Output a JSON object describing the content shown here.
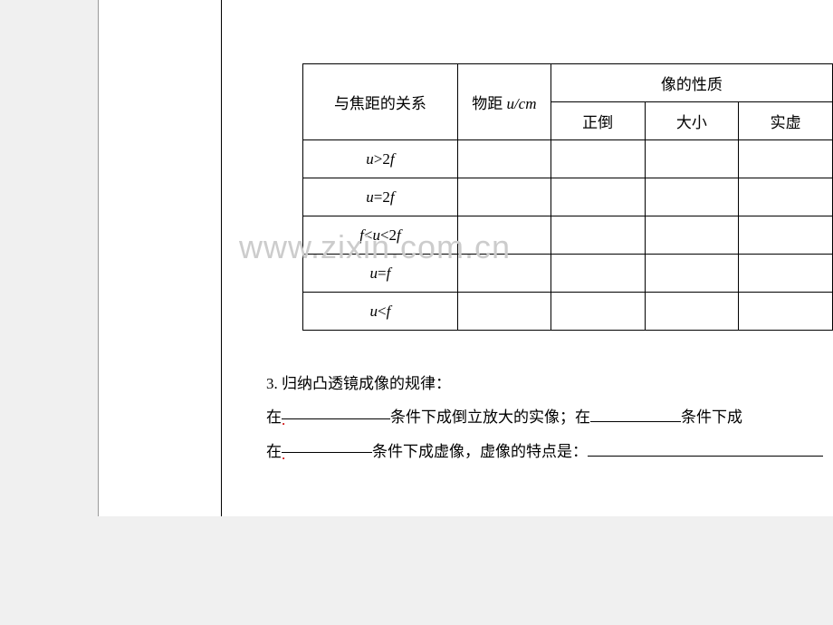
{
  "table": {
    "headers": {
      "relation": "与焦距的关系",
      "distance_label": "物距",
      "distance_unit": "u/cm",
      "properties": "像的性质",
      "sub_headers": [
        "正倒",
        "大小",
        "实虚"
      ]
    },
    "rows": [
      {
        "relation_html": "<span class='italic-var'>u</span>&gt;2<span class='italic-var'>f</span>"
      },
      {
        "relation_html": "<span class='italic-var'>u</span>=2<span class='italic-var'>f</span>"
      },
      {
        "relation_html": "<span class='italic-var'>f</span>&lt;<span class='italic-var'>u</span>&lt;2<span class='italic-var'>f</span>"
      },
      {
        "relation_html": "<span class='italic-var'>u</span>=<span class='italic-var'>f</span>"
      },
      {
        "relation_html": "<span class='italic-var'>u</span>&lt;<span class='italic-var'>f</span>"
      }
    ]
  },
  "text": {
    "line1_prefix": "3. 归纳凸透镜成像的规律：",
    "line2_part1": "在",
    "line2_part2": "条件下成倒立放大的实像；在",
    "line2_part3": "条件下成",
    "line3_part1": "在",
    "line3_part2": "条件下成虚像，虚像的特点是："
  },
  "watermark": "www.zixin.com.cn",
  "styling": {
    "page_bg": "#ffffff",
    "outer_bg": "#f0f0f0",
    "border_color": "#000000",
    "watermark_color": "#cccccc",
    "text_color": "#000000",
    "body_fontsize": 17,
    "watermark_fontsize": 36
  }
}
